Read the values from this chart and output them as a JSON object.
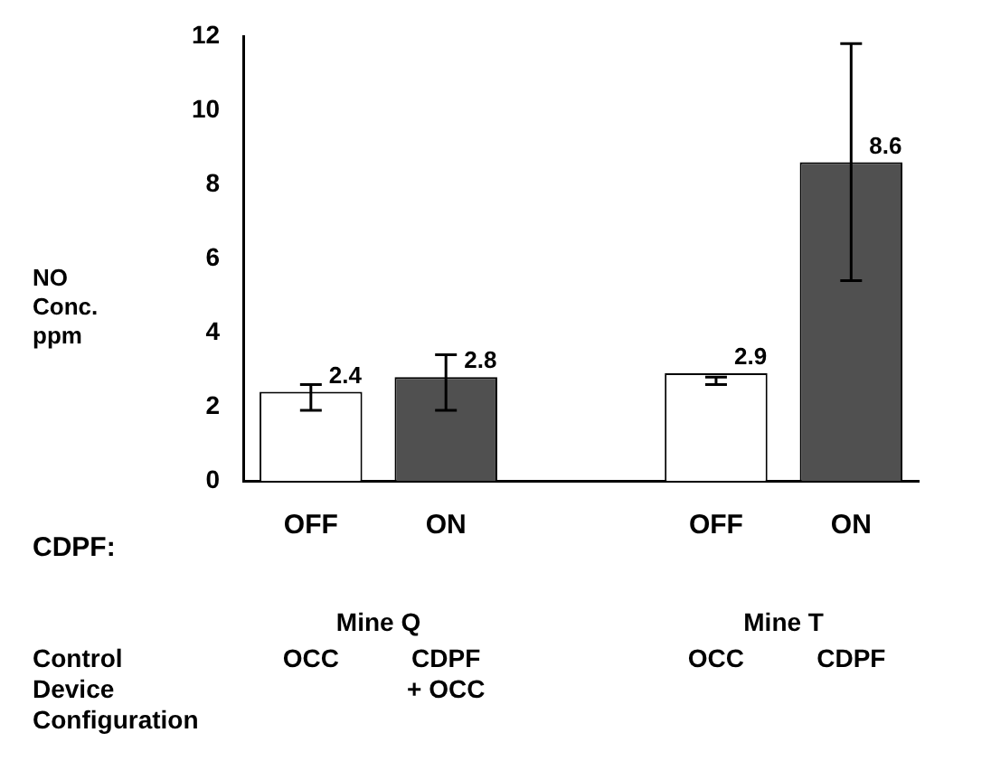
{
  "chart_data": {
    "type": "bar",
    "ylabel": "NO\nConc.\nppm",
    "categories": [
      "OFF",
      "ON",
      null,
      "OFF",
      "ON"
    ],
    "values": [
      2.4,
      2.8,
      null,
      2.9,
      8.6
    ],
    "colors": [
      "#ffffff",
      "#505050",
      "#ffffff",
      "#ffffff",
      "#505050"
    ],
    "errors": [
      [
        1.9,
        2.6
      ],
      [
        1.9,
        3.4
      ],
      null,
      [
        2.6,
        2.8
      ],
      [
        5.4,
        11.8
      ]
    ],
    "data_labels": true,
    "ylim": [
      0,
      12
    ],
    "yticks": [
      0,
      2,
      4,
      6,
      8,
      10,
      12
    ],
    "grid": false,
    "legend": false,
    "annotations": [
      "CDPF:",
      "Mine Q",
      "Mine T",
      "Control\nDevice\nConfiguration",
      "OCC",
      "CDPF\n+ OCC",
      "OCC",
      "CDPF"
    ]
  }
}
